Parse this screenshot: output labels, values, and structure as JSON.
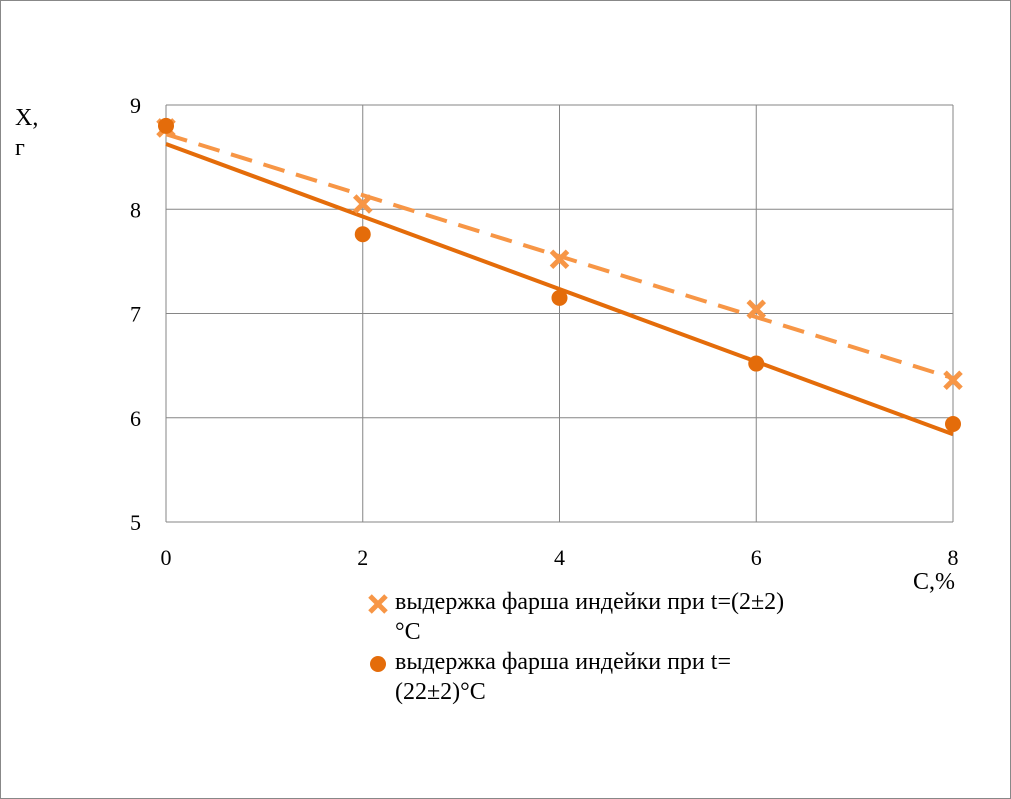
{
  "chart_data": {
    "type": "scatter",
    "x_label": "C,%",
    "y_label": "X, г",
    "x": [
      0,
      2,
      4,
      6,
      8
    ],
    "series": [
      {
        "name": "выдержка фарша индейки при t=(2±2)°C",
        "color": "#F79646",
        "marker": "cross",
        "trendline": "linear",
        "line_style": "dashed",
        "values": [
          8.78,
          8.05,
          7.52,
          7.04,
          6.36
        ]
      },
      {
        "name": "выдержка фарша индейки при t=(22±2)°C",
        "color": "#E46C0A",
        "marker": "circle",
        "trendline": "linear",
        "line_style": "solid",
        "values": [
          8.8,
          7.76,
          7.15,
          6.52,
          5.94
        ]
      }
    ],
    "xlim": [
      0,
      8
    ],
    "xticks": [
      0,
      2,
      4,
      6,
      8
    ],
    "ylim": [
      5,
      9
    ],
    "yticks": [
      5,
      6,
      7,
      8,
      9
    ],
    "grid": true
  }
}
